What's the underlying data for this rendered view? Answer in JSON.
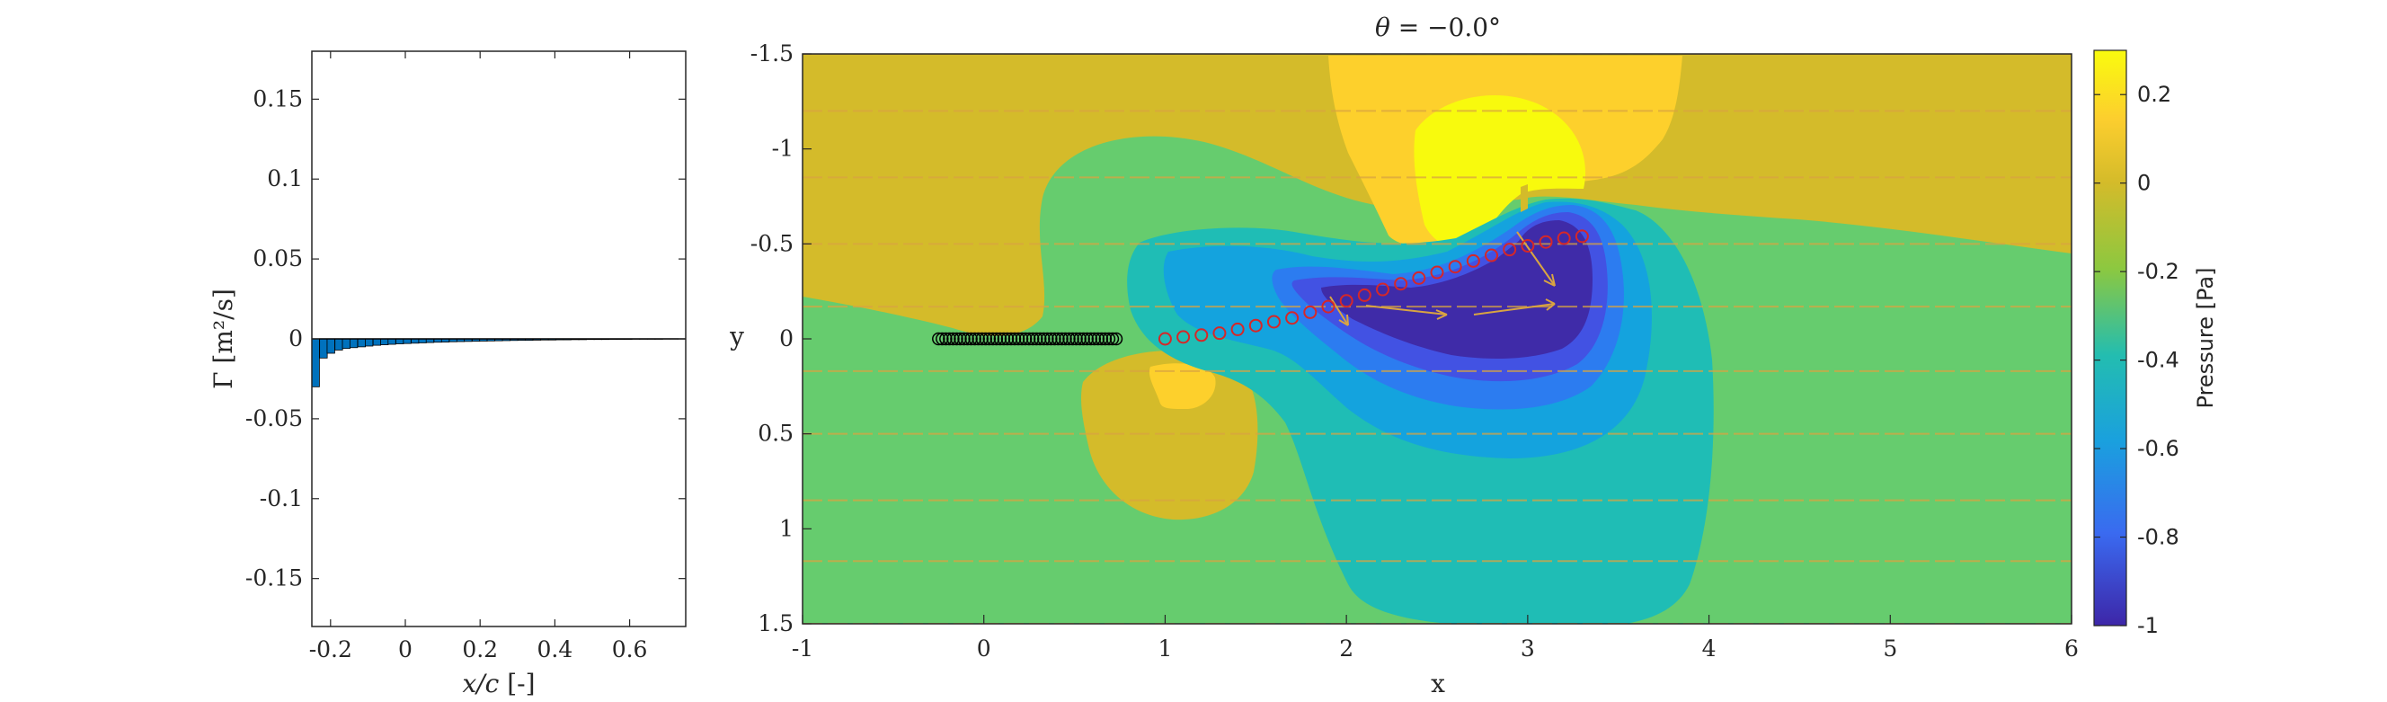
{
  "chart_data": [
    {
      "type": "bar",
      "xlabel_var": "x/c",
      "xlabel_unit": "[-]",
      "ylabel_sym": "Γ",
      "ylabel_unit": "[m²/s]",
      "xlim": [
        -0.25,
        0.75
      ],
      "ylim": [
        -0.18,
        0.18
      ],
      "xticks": [
        "-0.2",
        "0",
        "0.2",
        "0.4",
        "0.6"
      ],
      "xtick_values": [
        -0.2,
        0,
        0.2,
        0.4,
        0.6
      ],
      "yticks": [
        "0.15",
        "0.1",
        "0.05",
        "0",
        "-0.05",
        "-0.1",
        "-0.15"
      ],
      "ytick_values": [
        0.15,
        0.1,
        0.05,
        0,
        -0.05,
        -0.1,
        -0.15
      ],
      "bar_color": "#0072BD",
      "bar_width": 0.0204,
      "x": [
        -0.24,
        -0.219,
        -0.199,
        -0.178,
        -0.158,
        -0.138,
        -0.117,
        -0.097,
        -0.076,
        -0.056,
        -0.036,
        -0.015,
        0.005,
        0.026,
        0.046,
        0.066,
        0.087,
        0.107,
        0.128,
        0.148,
        0.168,
        0.189,
        0.209,
        0.229,
        0.25,
        0.27,
        0.291,
        0.311,
        0.331,
        0.352,
        0.372,
        0.393,
        0.413,
        0.433,
        0.454,
        0.474,
        0.495,
        0.515,
        0.535,
        0.556,
        0.576,
        0.596,
        0.617,
        0.637,
        0.658,
        0.678,
        0.698,
        0.719,
        0.739
      ],
      "values": [
        -0.03,
        -0.012,
        -0.009,
        -0.007,
        -0.006,
        -0.0055,
        -0.005,
        -0.0045,
        -0.004,
        -0.0037,
        -0.0034,
        -0.0031,
        -0.0029,
        -0.0027,
        -0.0025,
        -0.0023,
        -0.0021,
        -0.002,
        -0.0018,
        -0.0017,
        -0.0016,
        -0.0015,
        -0.0014,
        -0.0013,
        -0.0012,
        -0.0011,
        -0.001,
        -0.0009,
        -0.0009,
        -0.0008,
        -0.0007,
        -0.0007,
        -0.0006,
        -0.0006,
        -0.0005,
        -0.0005,
        -0.0004,
        -0.0004,
        -0.0004,
        -0.0003,
        -0.0003,
        -0.0003,
        -0.0002,
        -0.0002,
        -0.0002,
        -0.0002,
        -0.0001,
        -0.0001,
        -0.0001
      ]
    },
    {
      "type": "heatmap",
      "title_var": "θ",
      "title_value": "−0.0°",
      "xlabel": "x",
      "ylabel": "y",
      "xlim": [
        -1,
        6
      ],
      "ylim": [
        -1.5,
        1.5
      ],
      "y_direction": "reversed",
      "xticks": [
        "-1",
        "0",
        "1",
        "2",
        "3",
        "4",
        "5",
        "6"
      ],
      "xtick_values": [
        -1,
        0,
        1,
        2,
        3,
        4,
        5,
        6
      ],
      "yticks": [
        "-1.5",
        "-1",
        "-0.5",
        "0",
        "0.5",
        "1",
        "1.5"
      ],
      "ytick_values": [
        -1.5,
        -1,
        -0.5,
        0,
        0.5,
        1,
        1.5
      ],
      "colorbar": {
        "label": "Pressure [Pa]",
        "range": [
          -1,
          0.3
        ],
        "ticks": [
          "0.2",
          "0",
          "-0.2",
          "-0.4",
          "-0.6",
          "-0.8",
          "-1"
        ],
        "tick_values": [
          0.2,
          0,
          -0.2,
          -0.4,
          -0.6,
          -0.8,
          -1
        ]
      },
      "plate_markers": {
        "x": [
          -0.25,
          -0.23,
          -0.21,
          -0.19,
          -0.17,
          -0.15,
          -0.13,
          -0.11,
          -0.09,
          -0.07,
          -0.05,
          -0.03,
          -0.01,
          0.01,
          0.03,
          0.05,
          0.07,
          0.09,
          0.11,
          0.13,
          0.15,
          0.17,
          0.19,
          0.21,
          0.23,
          0.25,
          0.27,
          0.29,
          0.31,
          0.33,
          0.35,
          0.37,
          0.39,
          0.41,
          0.43,
          0.45,
          0.47,
          0.49,
          0.51,
          0.53,
          0.55,
          0.57,
          0.59,
          0.61,
          0.63,
          0.65,
          0.67,
          0.69,
          0.71,
          0.73
        ],
        "y": 0,
        "color": "#000000"
      },
      "wake_markers": {
        "x": [
          1.0,
          1.1,
          1.2,
          1.3,
          1.4,
          1.5,
          1.6,
          1.7,
          1.8,
          1.9,
          2.0,
          2.1,
          2.2,
          2.3,
          2.4,
          2.5,
          2.6,
          2.7,
          2.8,
          2.9,
          3.0,
          3.1,
          3.2,
          3.3
        ],
        "y": [
          0.0,
          -0.01,
          -0.02,
          -0.03,
          -0.05,
          -0.07,
          -0.09,
          -0.11,
          -0.14,
          -0.17,
          -0.2,
          -0.23,
          -0.26,
          -0.29,
          -0.32,
          -0.35,
          -0.38,
          -0.41,
          -0.44,
          -0.47,
          -0.49,
          -0.51,
          -0.53,
          -0.54
        ],
        "color": "#D62728"
      },
      "contour_levels": [
        {
          "level": 0,
          "color": "#D4BB2A"
        },
        {
          "level": -0.1,
          "color": "#66CC6E"
        },
        {
          "level": 0.1,
          "color": "#FDD02C"
        },
        {
          "level": 0.3,
          "color": "#F8FA0D"
        },
        {
          "level": -0.3,
          "color": "#1FBDB5"
        },
        {
          "level": -0.5,
          "color": "#14A3DE"
        },
        {
          "level": -0.7,
          "color": "#2C7CF0"
        },
        {
          "level": -0.85,
          "color": "#4252E3"
        },
        {
          "level": -0.95,
          "color": "#3F2BA8"
        }
      ]
    }
  ]
}
